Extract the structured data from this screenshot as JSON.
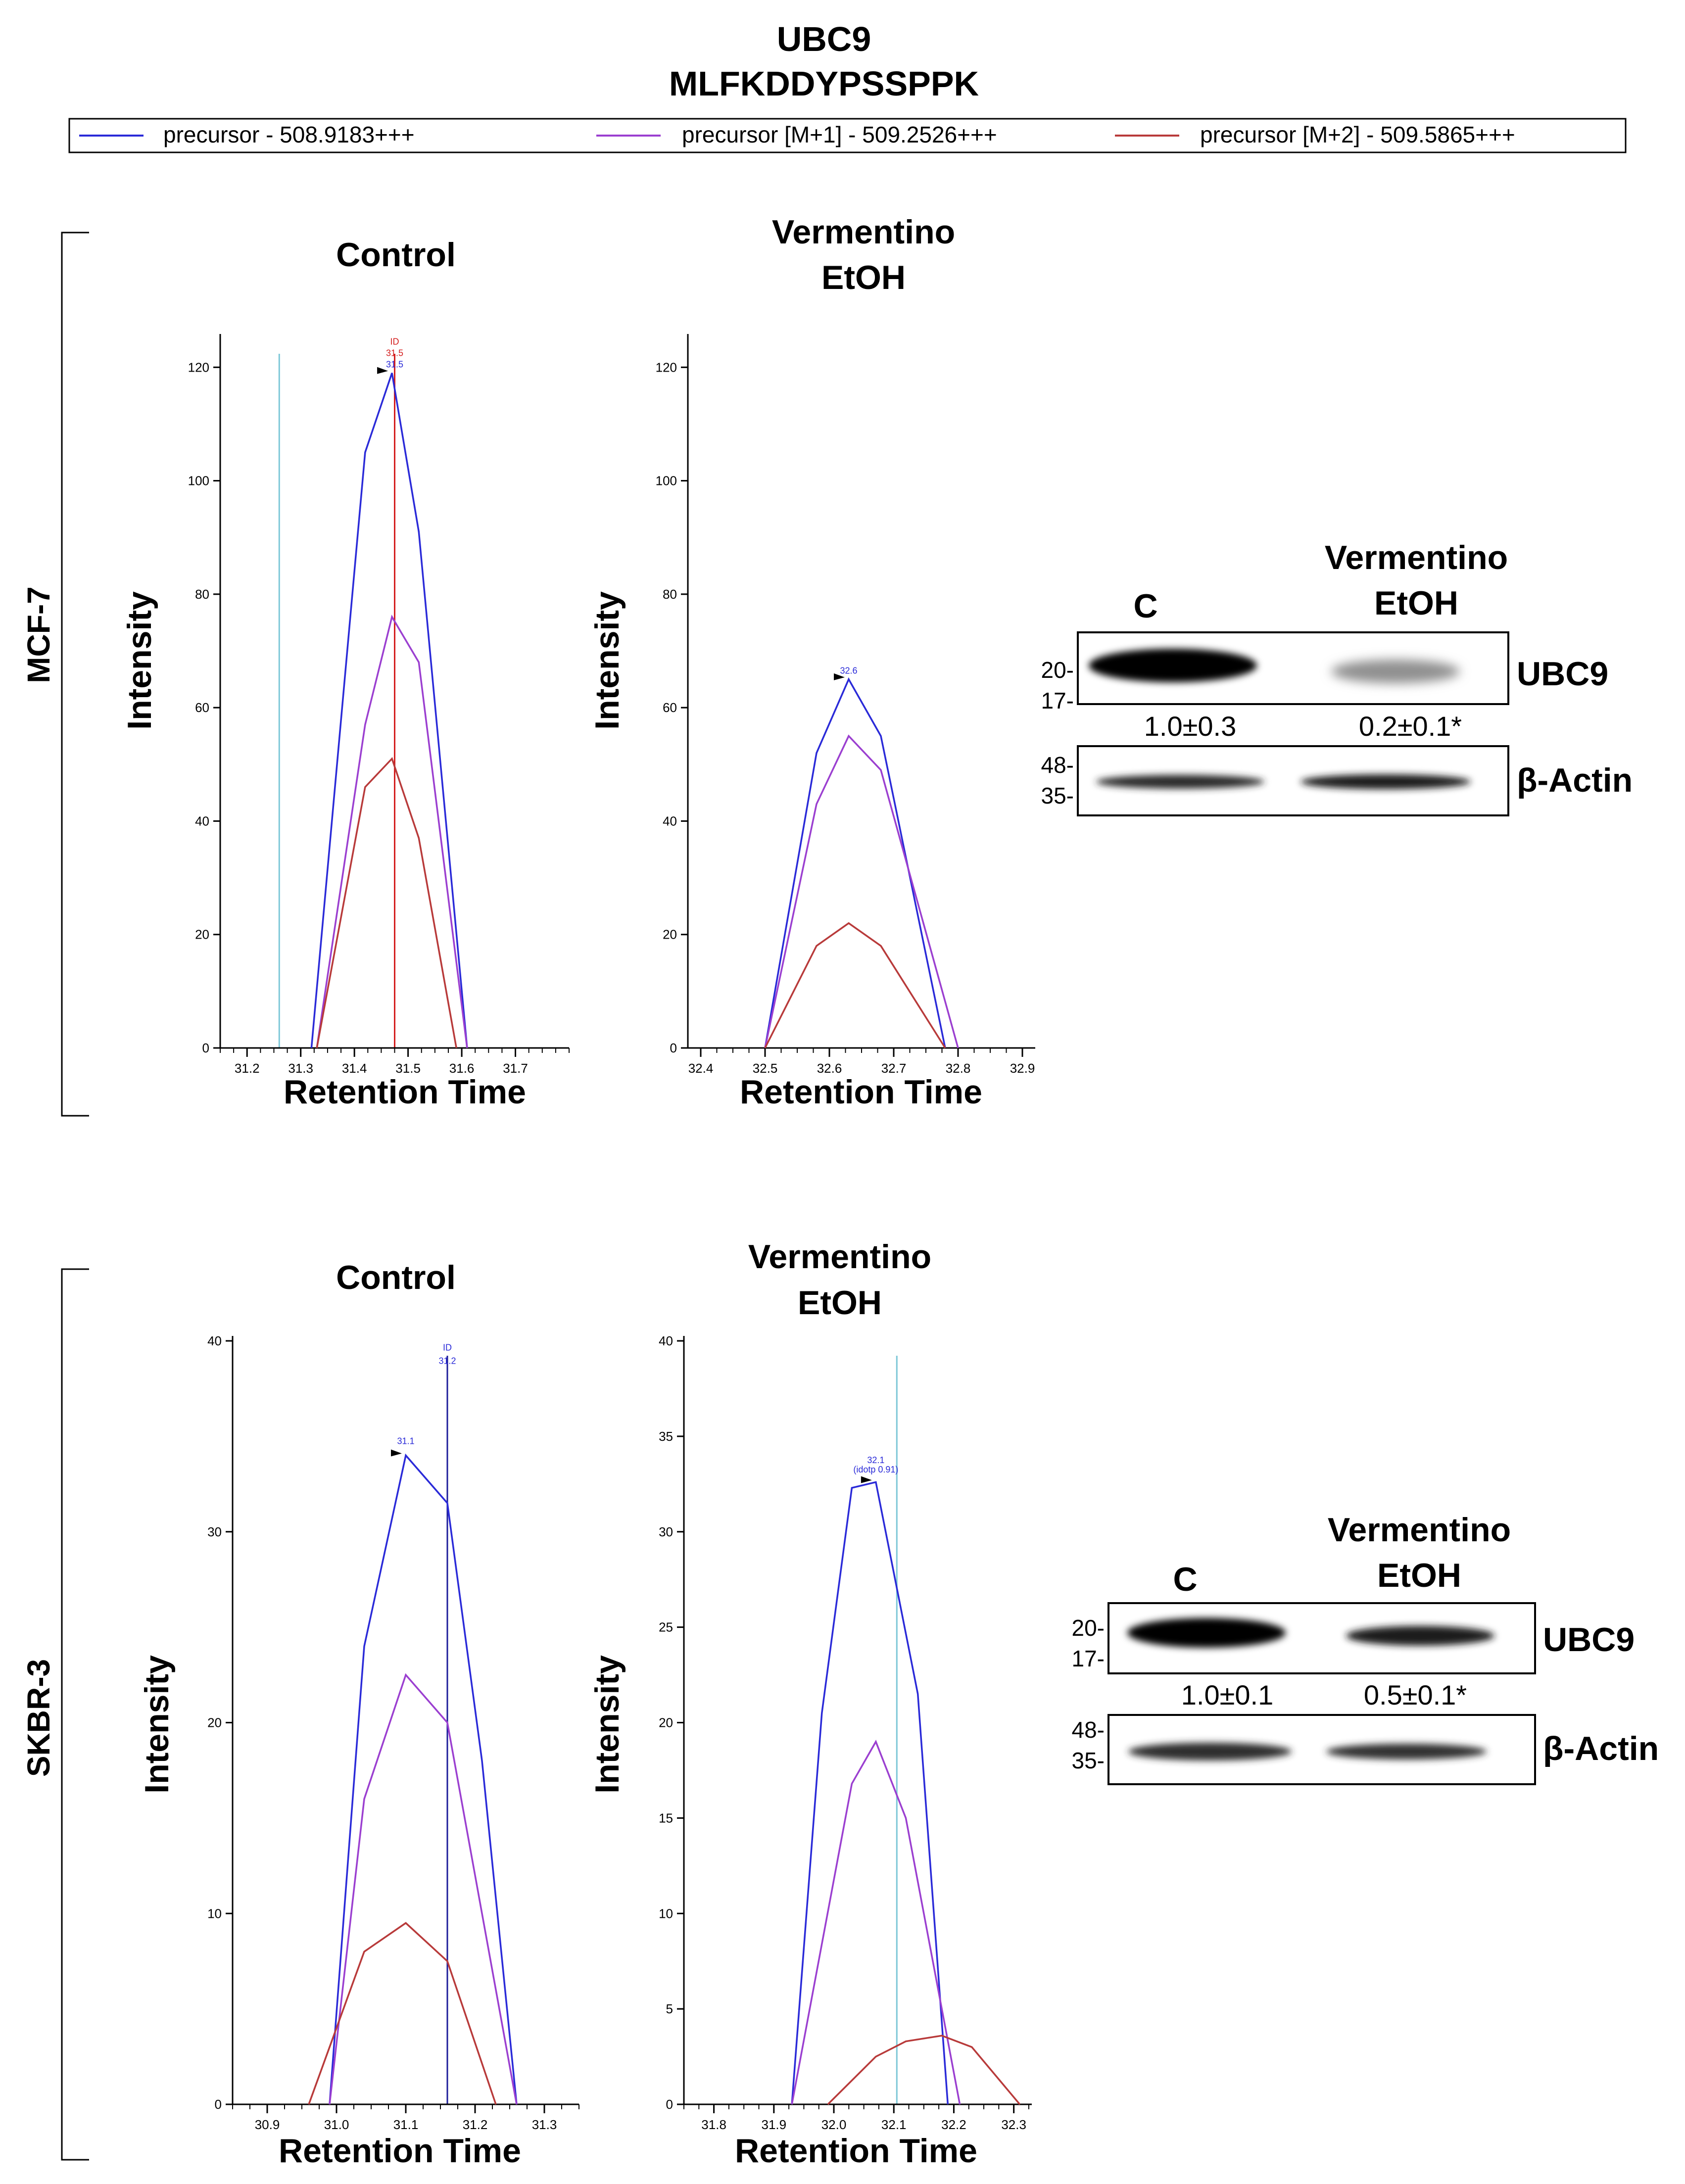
{
  "figure": {
    "protein": "UBC9",
    "peptide": "MLFKDDYPSSPPK",
    "legend": [
      {
        "label": "precursor - 508.9183+++",
        "color": "#2a2ad8"
      },
      {
        "label": "precursor [M+1] - 509.2526+++",
        "color": "#9b3fd0"
      },
      {
        "label": "precursor [M+2] - 509.5865+++",
        "color": "#b83a3a"
      }
    ],
    "cell_lines": [
      "MCF-7",
      "SKBR-3"
    ],
    "xlabel": "Retention Time",
    "ylabel": "Intensity"
  },
  "chart_data": [
    {
      "type": "line",
      "panel": "MCF-7 Control",
      "title": "Control",
      "xlabel": "Retention Time",
      "ylabel": "Intensity",
      "xlim": [
        31.15,
        31.8
      ],
      "ylim": [
        0,
        125
      ],
      "xticks": [
        "31.2",
        "31.3",
        "31.4",
        "31.5",
        "31.6",
        "31.7"
      ],
      "yticks": [
        "0",
        "20",
        "40",
        "60",
        "80",
        "100",
        "120"
      ],
      "series": [
        {
          "name": "precursor - 508.9183+++",
          "x": [
            31.32,
            31.42,
            31.47,
            31.52,
            31.61
          ],
          "y": [
            0,
            105,
            119,
            91,
            0
          ]
        },
        {
          "name": "precursor [M+1] - 509.2526+++",
          "x": [
            31.33,
            31.42,
            31.47,
            31.52,
            31.61
          ],
          "y": [
            0,
            57,
            76,
            68,
            0
          ]
        },
        {
          "name": "precursor [M+2] - 509.5865+++",
          "x": [
            31.33,
            31.42,
            31.47,
            31.52,
            31.59
          ],
          "y": [
            0,
            46,
            51,
            37,
            0
          ]
        }
      ],
      "vlines": [
        {
          "x": 31.26,
          "color": "#7ec8d8"
        },
        {
          "x": 31.475,
          "color": "#d42020"
        }
      ],
      "annotations": [
        {
          "text": "ID",
          "x": 31.475,
          "y": 124,
          "color": "#d42020"
        },
        {
          "text": "31.5",
          "x": 31.475,
          "y": 122,
          "color": "#d42020"
        },
        {
          "text": "31.5",
          "x": 31.475,
          "y": 120,
          "color": "#2a2ad8"
        }
      ]
    },
    {
      "type": "line",
      "panel": "MCF-7 Vermentino EtOH",
      "title": "Vermentino EtOH",
      "xlabel": "Retention Time",
      "ylabel": "Intensity",
      "xlim": [
        32.38,
        32.92
      ],
      "ylim": [
        0,
        125
      ],
      "xticks": [
        "32.4",
        "32.5",
        "32.6",
        "32.7",
        "32.8",
        "32.9"
      ],
      "yticks": [
        "0",
        "20",
        "40",
        "60",
        "80",
        "100",
        "120"
      ],
      "series": [
        {
          "name": "precursor - 508.9183+++",
          "x": [
            32.5,
            32.58,
            32.63,
            32.68,
            32.78
          ],
          "y": [
            0,
            52,
            65,
            55,
            0
          ]
        },
        {
          "name": "precursor [M+1] - 509.2526+++",
          "x": [
            32.5,
            32.58,
            32.63,
            32.68,
            32.8
          ],
          "y": [
            0,
            43,
            55,
            49,
            0
          ]
        },
        {
          "name": "precursor [M+2] - 509.5865+++",
          "x": [
            32.5,
            32.58,
            32.63,
            32.68,
            32.78
          ],
          "y": [
            0,
            18,
            22,
            18,
            0
          ]
        }
      ],
      "vlines": [],
      "annotations": [
        {
          "text": "32.6",
          "x": 32.63,
          "y": 66,
          "color": "#2a2ad8"
        }
      ]
    },
    {
      "type": "line",
      "panel": "SKBR-3 Control",
      "title": "Control",
      "xlabel": "Retention Time",
      "ylabel": "Intensity",
      "xlim": [
        30.85,
        31.35
      ],
      "ylim": [
        0,
        40
      ],
      "xticks": [
        "30.9",
        "31.0",
        "31.1",
        "31.2",
        "31.3"
      ],
      "yticks": [
        "0",
        "10",
        "20",
        "30",
        "40"
      ],
      "series": [
        {
          "name": "precursor - 508.9183+++",
          "x": [
            30.99,
            31.04,
            31.1,
            31.16,
            31.21,
            31.26
          ],
          "y": [
            0,
            24,
            34,
            31.5,
            18,
            0
          ]
        },
        {
          "name": "precursor [M+1] - 509.2526+++",
          "x": [
            30.99,
            31.04,
            31.1,
            31.16,
            31.21,
            31.26
          ],
          "y": [
            0,
            16,
            22.5,
            20,
            10,
            0
          ]
        },
        {
          "name": "precursor [M+2] - 509.5865+++",
          "x": [
            30.96,
            31.04,
            31.1,
            31.16,
            31.23
          ],
          "y": [
            0,
            8,
            9.5,
            7.5,
            0
          ]
        }
      ],
      "vlines": [
        {
          "x": 31.16,
          "color": "#1c1c9a"
        }
      ],
      "annotations": [
        {
          "text": "ID",
          "x": 31.16,
          "y": 39.5,
          "color": "#2a2ad8"
        },
        {
          "text": "31.2",
          "x": 31.16,
          "y": 38.8,
          "color": "#2a2ad8"
        },
        {
          "text": "31.1",
          "x": 31.1,
          "y": 34.6,
          "color": "#2a2ad8"
        }
      ]
    },
    {
      "type": "line",
      "panel": "SKBR-3 Vermentino EtOH",
      "title": "Vermentino EtOH",
      "xlabel": "Retention Time",
      "ylabel": "Intensity",
      "xlim": [
        31.75,
        32.33
      ],
      "ylim": [
        0,
        40
      ],
      "xticks": [
        "31.8",
        "31.9",
        "32.0",
        "32.1",
        "32.2",
        "32.3"
      ],
      "yticks": [
        "0",
        "5",
        "10",
        "15",
        "20",
        "25",
        "30",
        "35",
        "40"
      ],
      "series": [
        {
          "name": "precursor - 508.9183+++",
          "x": [
            31.93,
            31.98,
            32.03,
            32.07,
            32.14,
            32.19
          ],
          "y": [
            0,
            20.5,
            32.3,
            32.6,
            21.5,
            0
          ]
        },
        {
          "name": "precursor [M+1] - 509.2526+++",
          "x": [
            31.93,
            32.03,
            32.07,
            32.12,
            32.21
          ],
          "y": [
            0,
            16.8,
            19,
            15,
            0
          ]
        },
        {
          "name": "precursor [M+2] - 509.5865+++",
          "x": [
            31.99,
            32.07,
            32.12,
            32.18,
            32.23,
            32.31
          ],
          "y": [
            0,
            2.5,
            3.3,
            3.6,
            3,
            0
          ]
        }
      ],
      "vlines": [
        {
          "x": 32.105,
          "color": "#7ec8d8"
        }
      ],
      "annotations": [
        {
          "text": "32.1",
          "x": 32.07,
          "y": 33.6,
          "color": "#2a2ad8"
        },
        {
          "text": "(idotp 0.91)",
          "x": 32.07,
          "y": 33.1,
          "color": "#2a2ad8"
        }
      ]
    }
  ],
  "blots": [
    {
      "cell_line": "MCF-7",
      "lane1": "C",
      "lane2_line1": "Vermentino",
      "lane2_line2": "EtOH",
      "markers_top": [
        "20-",
        "17-"
      ],
      "markers_bottom": [
        "48-",
        "35-"
      ],
      "target": "UBC9",
      "loading": "β-Actin",
      "quant1": "1.0±0.3",
      "quant2": "0.2±0.1*"
    },
    {
      "cell_line": "SKBR-3",
      "lane1": "C",
      "lane2_line1": "Vermentino",
      "lane2_line2": "EtOH",
      "markers_top": [
        "20-",
        "17-"
      ],
      "markers_bottom": [
        "48-",
        "35-"
      ],
      "target": "UBC9",
      "loading": "β-Actin",
      "quant1": "1.0±0.1",
      "quant2": "0.5±0.1*"
    }
  ]
}
